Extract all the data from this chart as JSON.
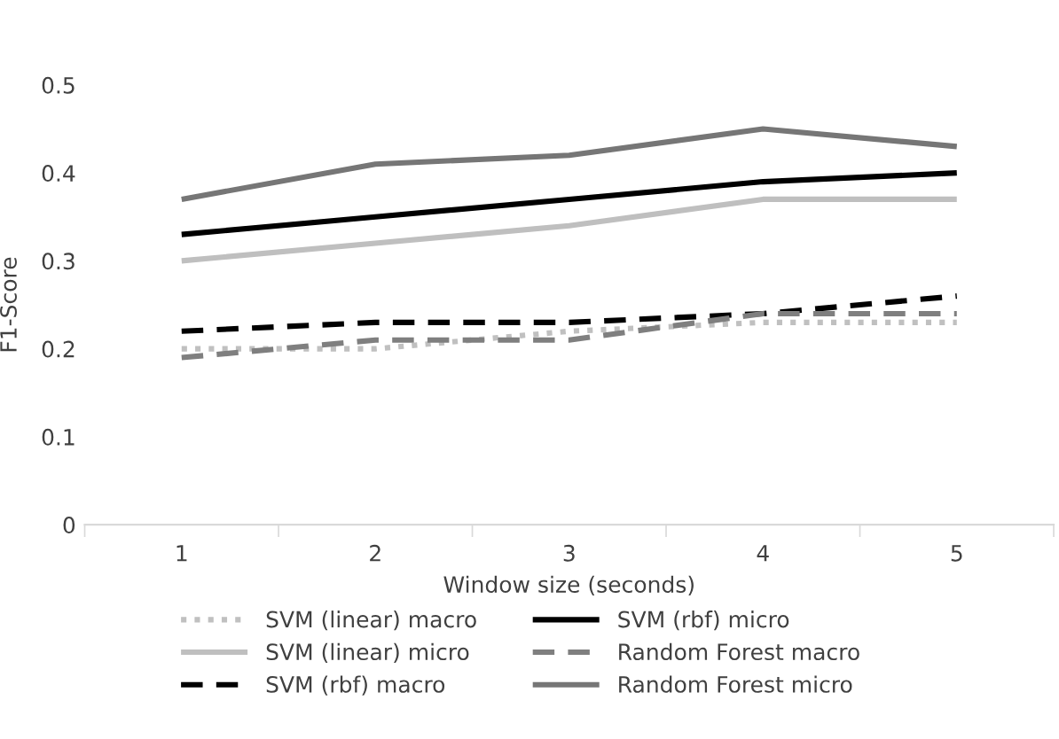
{
  "chart_data": {
    "type": "line",
    "xlabel": "Window size (seconds)",
    "ylabel": "F1-Score",
    "categories": [
      "1",
      "2",
      "3",
      "4",
      "5"
    ],
    "ylim": [
      0,
      0.5
    ],
    "yticks": [
      0,
      0.1,
      0.2,
      0.3,
      0.4,
      0.5
    ],
    "grid": false,
    "legend": "bottom",
    "marker": "none",
    "series": [
      {
        "name": "SVM (linear) macro",
        "color": "#c0c0c0",
        "line_style": "dotted",
        "values": [
          0.2,
          0.2,
          0.22,
          0.23,
          0.23
        ]
      },
      {
        "name": "SVM (linear) micro",
        "color": "#bfbfbf",
        "line_style": "solid",
        "values": [
          0.3,
          0.32,
          0.34,
          0.37,
          0.37
        ]
      },
      {
        "name": "SVM (rbf) macro",
        "color": "#000000",
        "line_style": "dashed",
        "values": [
          0.22,
          0.23,
          0.23,
          0.24,
          0.26
        ]
      },
      {
        "name": "SVM (rbf) micro",
        "color": "#000000",
        "line_style": "solid",
        "values": [
          0.33,
          0.35,
          0.37,
          0.39,
          0.4
        ]
      },
      {
        "name": "Random Forest macro",
        "color": "#7f7f7f",
        "line_style": "dashed",
        "values": [
          0.19,
          0.21,
          0.21,
          0.24,
          0.24
        ]
      },
      {
        "name": "Random Forest micro",
        "color": "#767676",
        "line_style": "solid",
        "values": [
          0.37,
          0.41,
          0.42,
          0.45,
          0.43
        ]
      }
    ]
  }
}
